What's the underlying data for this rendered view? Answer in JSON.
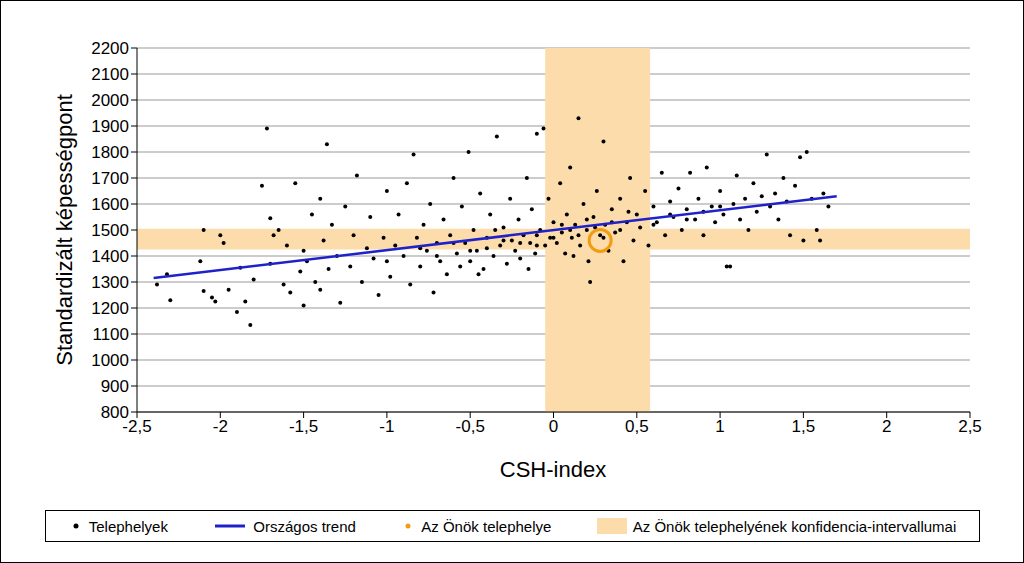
{
  "chart_data": {
    "type": "scatter",
    "x_label": "CSH-index",
    "y_label": "Standardizált képességpont",
    "xlim": [
      -2.5,
      2.5
    ],
    "ylim": [
      800,
      2200
    ],
    "xticks": [
      {
        "value": -2.5,
        "label": "-2,5"
      },
      -2,
      {
        "value": -1.5,
        "label": "-1,5"
      },
      -1,
      {
        "value": -0.5,
        "label": "-0,5"
      },
      0,
      {
        "value": 0.5,
        "label": "0,5"
      },
      1,
      {
        "value": 1.5,
        "label": "1,5"
      },
      2,
      {
        "value": 2.5,
        "label": "2,5"
      }
    ],
    "yticks": [
      800,
      900,
      1000,
      1100,
      1200,
      1300,
      1400,
      1500,
      1600,
      1700,
      1800,
      1900,
      2000,
      2100,
      2200
    ],
    "grid": true,
    "legend": "bottom",
    "series": [
      {
        "name": "Telephelyek",
        "type": "scatter",
        "color": "#000000",
        "marker": "dot",
        "points": [
          [
            -2.38,
            1290
          ],
          [
            -2.32,
            1330
          ],
          [
            -2.3,
            1230
          ],
          [
            -2.12,
            1380
          ],
          [
            -2.1,
            1500
          ],
          [
            -2.1,
            1265
          ],
          [
            -2.05,
            1240
          ],
          [
            -2.03,
            1225
          ],
          [
            -2.0,
            1480
          ],
          [
            -1.98,
            1450
          ],
          [
            -1.95,
            1270
          ],
          [
            -1.9,
            1185
          ],
          [
            -1.88,
            1355
          ],
          [
            -1.85,
            1225
          ],
          [
            -1.82,
            1135
          ],
          [
            -1.8,
            1310
          ],
          [
            -1.75,
            1670
          ],
          [
            -1.72,
            1890
          ],
          [
            -1.7,
            1545
          ],
          [
            -1.7,
            1370
          ],
          [
            -1.68,
            1480
          ],
          [
            -1.65,
            1500
          ],
          [
            -1.62,
            1290
          ],
          [
            -1.6,
            1440
          ],
          [
            -1.58,
            1260
          ],
          [
            -1.55,
            1680
          ],
          [
            -1.52,
            1340
          ],
          [
            -1.5,
            1210
          ],
          [
            -1.5,
            1420
          ],
          [
            -1.48,
            1380
          ],
          [
            -1.45,
            1560
          ],
          [
            -1.43,
            1300
          ],
          [
            -1.4,
            1620
          ],
          [
            -1.4,
            1270
          ],
          [
            -1.38,
            1460
          ],
          [
            -1.36,
            1830
          ],
          [
            -1.35,
            1350
          ],
          [
            -1.33,
            1520
          ],
          [
            -1.3,
            1400
          ],
          [
            -1.28,
            1220
          ],
          [
            -1.25,
            1590
          ],
          [
            -1.22,
            1360
          ],
          [
            -1.2,
            1480
          ],
          [
            -1.18,
            1710
          ],
          [
            -1.15,
            1300
          ],
          [
            -1.12,
            1430
          ],
          [
            -1.1,
            1550
          ],
          [
            -1.08,
            1390
          ],
          [
            -1.05,
            1250
          ],
          [
            -1.02,
            1470
          ],
          [
            -1.0,
            1650
          ],
          [
            -1.0,
            1380
          ],
          [
            -0.98,
            1320
          ],
          [
            -0.95,
            1440
          ],
          [
            -0.93,
            1560
          ],
          [
            -0.9,
            1400
          ],
          [
            -0.88,
            1680
          ],
          [
            -0.86,
            1290
          ],
          [
            -0.84,
            1790
          ],
          [
            -0.82,
            1470
          ],
          [
            -0.8,
            1360
          ],
          [
            -0.78,
            1520
          ],
          [
            -0.76,
            1420
          ],
          [
            -0.74,
            1600
          ],
          [
            -0.72,
            1260
          ],
          [
            -0.7,
            1450
          ],
          [
            -0.68,
            1380
          ],
          [
            -0.66,
            1540
          ],
          [
            -0.64,
            1330
          ],
          [
            -0.62,
            1480
          ],
          [
            -0.6,
            1700
          ],
          [
            -0.58,
            1410
          ],
          [
            -0.56,
            1360
          ],
          [
            -0.55,
            1590
          ],
          [
            -0.53,
            1450
          ],
          [
            -0.51,
            1800
          ],
          [
            -0.5,
            1380
          ],
          [
            -0.48,
            1500
          ],
          [
            -0.46,
            1420
          ],
          [
            -0.44,
            1640
          ],
          [
            -0.42,
            1350
          ],
          [
            -0.4,
            1470
          ],
          [
            -0.38,
            1560
          ],
          [
            -0.36,
            1400
          ],
          [
            -0.34,
            1860
          ],
          [
            -0.32,
            1440
          ],
          [
            -0.3,
            1510
          ],
          [
            -0.28,
            1370
          ],
          [
            -0.26,
            1620
          ],
          [
            -0.25,
            1460
          ],
          [
            -0.23,
            1420
          ],
          [
            -0.21,
            1540
          ],
          [
            -0.2,
            1390
          ],
          [
            -0.18,
            1480
          ],
          [
            -0.16,
            1700
          ],
          [
            -0.14,
            1450
          ],
          [
            -0.13,
            1580
          ],
          [
            -0.11,
            1410
          ],
          [
            -0.1,
            1870
          ],
          [
            -0.08,
            1500
          ],
          [
            -0.06,
            1890
          ],
          [
            -0.05,
            1440
          ],
          [
            -0.03,
            1620
          ],
          [
            -0.02,
            1470
          ],
          [
            0,
            1530
          ],
          [
            0.02,
            1450
          ],
          [
            0.04,
            1680
          ],
          [
            0.05,
            1490
          ],
          [
            0.07,
            1410
          ],
          [
            0.08,
            1560
          ],
          [
            0.1,
            1740
          ],
          [
            0.11,
            1470
          ],
          [
            0.13,
            1520
          ],
          [
            0.15,
            1930
          ],
          [
            0.16,
            1440
          ],
          [
            0.18,
            1600
          ],
          [
            0.2,
            1500
          ],
          [
            0.21,
            1380
          ],
          [
            0.22,
            1300
          ],
          [
            0.24,
            1550
          ],
          [
            0.26,
            1650
          ],
          [
            0.28,
            1480
          ],
          [
            0.3,
            1840
          ],
          [
            0.31,
            1520
          ],
          [
            0.33,
            1420
          ],
          [
            0.35,
            1580
          ],
          [
            0.37,
            1490
          ],
          [
            0.4,
            1620
          ],
          [
            0.42,
            1380
          ],
          [
            0.44,
            1530
          ],
          [
            0.46,
            1700
          ],
          [
            0.48,
            1460
          ],
          [
            0.5,
            1560
          ],
          [
            0.52,
            1510
          ],
          [
            0.55,
            1650
          ],
          [
            0.57,
            1440
          ],
          [
            0.6,
            1590
          ],
          [
            0.62,
            1530
          ],
          [
            0.65,
            1720
          ],
          [
            0.67,
            1480
          ],
          [
            0.7,
            1610
          ],
          [
            0.72,
            1550
          ],
          [
            0.75,
            1660
          ],
          [
            0.77,
            1500
          ],
          [
            0.8,
            1580
          ],
          [
            0.82,
            1720
          ],
          [
            0.85,
            1540
          ],
          [
            0.87,
            1620
          ],
          [
            0.9,
            1480
          ],
          [
            0.92,
            1740
          ],
          [
            0.95,
            1590
          ],
          [
            0.97,
            1530
          ],
          [
            1.0,
            1650
          ],
          [
            1.02,
            1560
          ],
          [
            1.04,
            1360
          ],
          [
            1.06,
            1360
          ],
          [
            1.08,
            1600
          ],
          [
            1.1,
            1710
          ],
          [
            1.12,
            1540
          ],
          [
            1.15,
            1620
          ],
          [
            1.17,
            1500
          ],
          [
            1.2,
            1680
          ],
          [
            1.22,
            1570
          ],
          [
            1.25,
            1630
          ],
          [
            1.28,
            1790
          ],
          [
            1.3,
            1590
          ],
          [
            1.33,
            1640
          ],
          [
            1.35,
            1540
          ],
          [
            1.38,
            1700
          ],
          [
            1.4,
            1610
          ],
          [
            1.42,
            1480
          ],
          [
            1.45,
            1670
          ],
          [
            1.48,
            1780
          ],
          [
            1.5,
            1460
          ],
          [
            1.52,
            1800
          ],
          [
            1.55,
            1620
          ],
          [
            1.58,
            1500
          ],
          [
            1.6,
            1460
          ],
          [
            1.62,
            1640
          ],
          [
            1.65,
            1590
          ],
          [
            -0.4,
            1430
          ],
          [
            -0.3,
            1460
          ],
          [
            -0.2,
            1450
          ],
          [
            -0.1,
            1480
          ],
          [
            -0.1,
            1440
          ],
          [
            0,
            1470
          ],
          [
            0.05,
            1520
          ],
          [
            0.1,
            1500
          ],
          [
            0.15,
            1480
          ],
          [
            0.2,
            1540
          ],
          [
            0.25,
            1510
          ],
          [
            0.3,
            1470
          ],
          [
            0.35,
            1530
          ],
          [
            0.4,
            1500
          ],
          [
            -0.6,
            1450
          ],
          [
            -0.5,
            1420
          ],
          [
            -0.7,
            1400
          ],
          [
            -0.8,
            1430
          ],
          [
            0.6,
            1520
          ],
          [
            0.7,
            1560
          ],
          [
            0.8,
            1540
          ],
          [
            0.9,
            1570
          ],
          [
            1.0,
            1590
          ],
          [
            -0.15,
            1350
          ],
          [
            0.12,
            1400
          ],
          [
            0.45,
            1570
          ],
          [
            -0.35,
            1500
          ],
          [
            -0.45,
            1330
          ]
        ]
      },
      {
        "name": "Országos trend",
        "type": "line",
        "color": "#1f22c8",
        "points": [
          [
            -2.4,
            1315
          ],
          [
            1.7,
            1630
          ]
        ]
      },
      {
        "name": "Az Önök telephelye",
        "type": "scatter",
        "color": "#f39c12",
        "marker": "ring",
        "points": [
          [
            0.28,
            1460
          ]
        ]
      },
      {
        "name": "Az Önök telephelyének konfidencia-intervallumai",
        "type": "band",
        "color": "#fcdcaa",
        "x_range": [
          -0.05,
          0.58
        ],
        "y_range": [
          1425,
          1505
        ]
      }
    ]
  }
}
